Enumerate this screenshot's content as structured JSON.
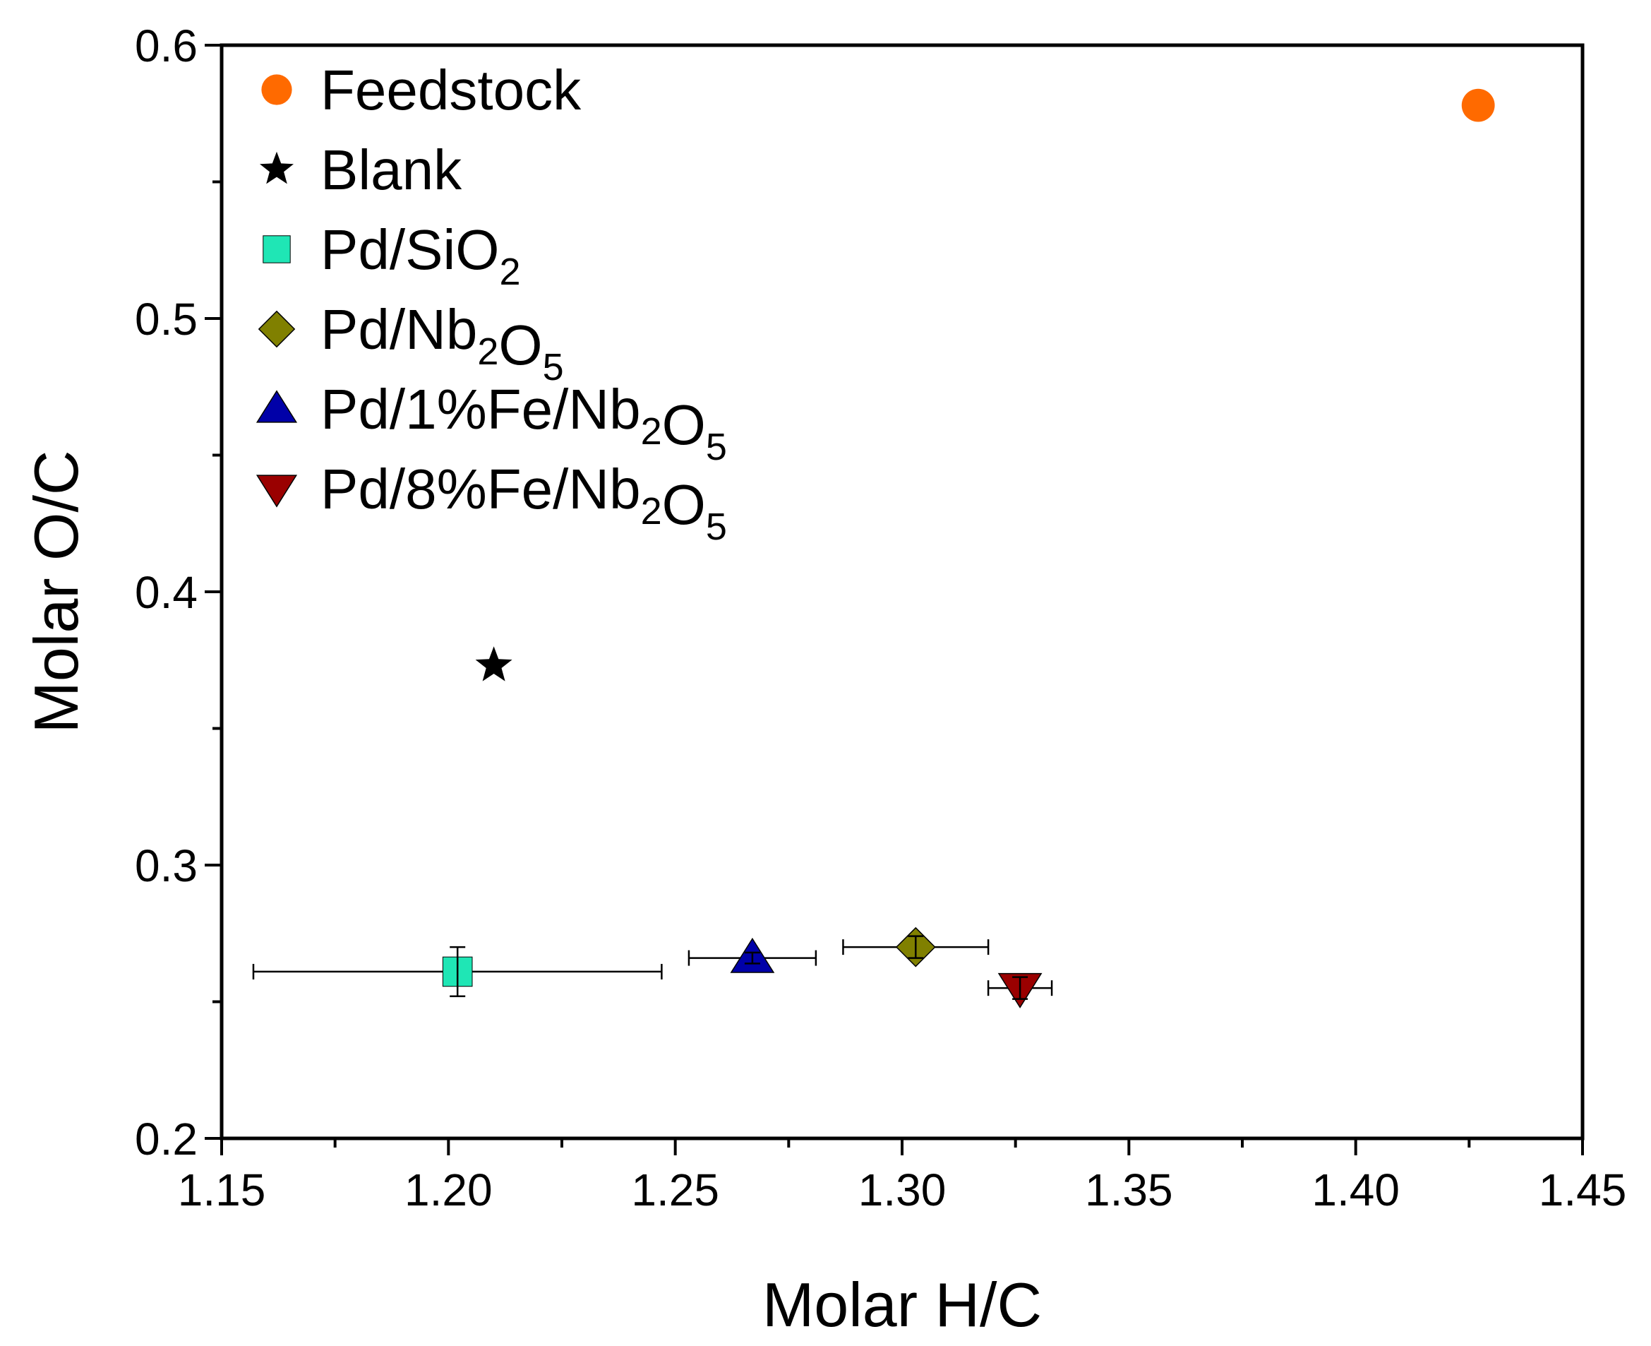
{
  "chart_data": {
    "type": "scatter",
    "title": "",
    "xlabel": "Molar H/C",
    "ylabel": "Molar O/C",
    "xlim": [
      1.15,
      1.45
    ],
    "ylim": [
      0.2,
      0.6
    ],
    "x_ticks": [
      "1.15",
      "1.20",
      "1.25",
      "1.30",
      "1.35",
      "1.40",
      "1.45"
    ],
    "y_ticks": [
      "0.2",
      "0.3",
      "0.4",
      "0.5",
      "0.6"
    ],
    "x_minor_step": 0.025,
    "y_minor_step": 0.05,
    "legend_position": "top-left",
    "series": [
      {
        "name": "Feedstock",
        "legend_text": "Feedstock",
        "legend_sub": "",
        "legend_tail": "",
        "legend_sub2": "",
        "marker": "circle",
        "color": "#FF6A00",
        "x": 1.427,
        "y": 0.578,
        "xerr": null,
        "yerr": null
      },
      {
        "name": "Blank",
        "legend_text": "Blank",
        "legend_sub": "",
        "legend_tail": "",
        "legend_sub2": "",
        "marker": "star",
        "color": "#000000",
        "x": 1.21,
        "y": 0.373,
        "xerr": null,
        "yerr": null
      },
      {
        "name": "Pd/SiO2",
        "legend_text": "Pd/SiO",
        "legend_sub": "2",
        "legend_tail": "",
        "legend_sub2": "",
        "marker": "square",
        "color": "#1FE6B5",
        "x": 1.202,
        "y": 0.261,
        "xerr": 0.045,
        "yerr": 0.009
      },
      {
        "name": "Pd/Nb2O5",
        "legend_text": "Pd/Nb",
        "legend_sub": "2",
        "legend_tail": "O",
        "legend_sub2": "5",
        "marker": "diamond",
        "color": "#808000",
        "x": 1.303,
        "y": 0.27,
        "xerr": 0.016,
        "yerr": 0.004
      },
      {
        "name": "Pd/1%Fe/Nb2O5",
        "legend_text": "Pd/1%Fe/Nb",
        "legend_sub": "2",
        "legend_tail": "O",
        "legend_sub2": "5",
        "marker": "triangle-up",
        "color": "#0000A8",
        "x": 1.267,
        "y": 0.266,
        "xerr": 0.014,
        "yerr": 0.002
      },
      {
        "name": "Pd/8%Fe/Nb2O5",
        "legend_text": "Pd/8%Fe/Nb",
        "legend_sub": "2",
        "legend_tail": "O",
        "legend_sub2": "5",
        "marker": "triangle-down",
        "color": "#9A0000",
        "x": 1.326,
        "y": 0.255,
        "xerr": 0.007,
        "yerr": 0.004
      }
    ]
  }
}
